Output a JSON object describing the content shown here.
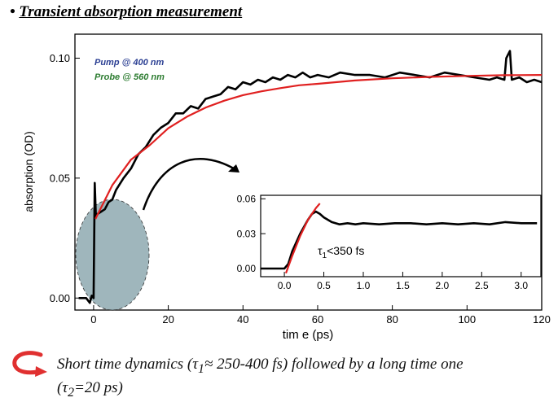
{
  "slide": {
    "bullet": "•",
    "title": "Transient absorption measurement"
  },
  "legend": {
    "pump": "Pump @ 400 nm",
    "probe": "Probe @ 560 nm",
    "pump_color": "#2b3f93",
    "probe_color": "#2e7d32"
  },
  "colors": {
    "data": "#000000",
    "fit": "#e02020",
    "ellipse": "#7f9ea6"
  },
  "caption": {
    "line1_a": "Short time dynamics (",
    "tau1_sym": "τ",
    "tau1_sub": "1",
    "line1_b": "≈ 250-400 fs) followed by a long time one",
    "line2_a": "(",
    "tau2_sym": "τ",
    "tau2_sub": "2",
    "line2_b": "=20 ps)"
  },
  "chart_data": [
    {
      "type": "line",
      "xlabel": "tim e (ps)",
      "ylabel": "absorption (OD)",
      "xlim": [
        -5,
        120
      ],
      "ylim": [
        -0.005,
        0.11
      ],
      "xticks": [
        0,
        20,
        40,
        60,
        80,
        100,
        120
      ],
      "yticks": [
        0.0,
        0.05,
        0.1
      ],
      "xtick_labels": [
        "0",
        "20",
        "40",
        "60",
        "80",
        "100",
        "120"
      ],
      "ytick_labels": [
        "0.00",
        "0.05",
        "0.10"
      ],
      "series": [
        {
          "role": "data",
          "x": [
            -4,
            -2,
            -1,
            -0.5,
            0,
            0.3,
            0.6,
            1,
            2,
            3,
            4,
            5,
            6,
            8,
            10,
            12,
            14,
            16,
            18,
            20,
            22,
            24,
            26,
            28,
            30,
            32,
            34,
            36,
            38,
            40,
            42,
            44,
            46,
            48,
            50,
            52,
            54,
            56,
            58,
            60,
            63,
            66,
            70,
            74,
            78,
            82,
            86,
            90,
            94,
            98,
            102,
            106,
            108,
            110,
            110.5,
            111.5,
            112,
            114,
            116,
            118,
            120
          ],
          "y": [
            0.0,
            0.0,
            -0.002,
            0.001,
            0.0,
            0.048,
            0.034,
            0.035,
            0.036,
            0.037,
            0.04,
            0.041,
            0.045,
            0.05,
            0.054,
            0.06,
            0.063,
            0.068,
            0.071,
            0.073,
            0.077,
            0.077,
            0.08,
            0.079,
            0.083,
            0.084,
            0.085,
            0.088,
            0.087,
            0.09,
            0.089,
            0.091,
            0.09,
            0.092,
            0.091,
            0.093,
            0.092,
            0.094,
            0.092,
            0.093,
            0.092,
            0.094,
            0.093,
            0.093,
            0.092,
            0.094,
            0.093,
            0.092,
            0.094,
            0.093,
            0.092,
            0.091,
            0.092,
            0.091,
            0.1,
            0.103,
            0.091,
            0.092,
            0.09,
            0.091,
            0.09
          ]
        },
        {
          "role": "fit",
          "model": "0.093*(1-0.65*exp(-t/20))",
          "x": [
            0.5,
            5,
            10,
            15,
            20,
            25,
            30,
            35,
            40,
            45,
            50,
            55,
            60,
            70,
            80,
            90,
            100,
            110,
            120
          ],
          "y": [
            0.033,
            0.047,
            0.0577,
            0.0637,
            0.0708,
            0.0756,
            0.0794,
            0.0823,
            0.0846,
            0.0862,
            0.0875,
            0.0887,
            0.0893,
            0.0907,
            0.0916,
            0.0922,
            0.0926,
            0.0929,
            0.093
          ]
        }
      ]
    },
    {
      "type": "line",
      "inset": true,
      "xlim": [
        -0.3,
        3.25
      ],
      "ylim": [
        -0.007,
        0.063
      ],
      "xticks": [
        0.0,
        0.5,
        1.0,
        1.5,
        2.0,
        2.5,
        3.0
      ],
      "yticks": [
        0.0,
        0.03,
        0.06
      ],
      "xtick_labels": [
        "0.0",
        "0.5",
        "1.0",
        "1.5",
        "2.0",
        "2.5",
        "3.0"
      ],
      "ytick_labels": [
        "0.00",
        "0.03",
        "0.06"
      ],
      "annotation": {
        "sym": "τ",
        "sub": "1",
        "rest": "<350 fs"
      },
      "series": [
        {
          "role": "data",
          "x": [
            -0.3,
            -0.1,
            0.0,
            0.05,
            0.1,
            0.2,
            0.3,
            0.35,
            0.4,
            0.45,
            0.5,
            0.6,
            0.7,
            0.8,
            0.9,
            1.0,
            1.2,
            1.4,
            1.6,
            1.8,
            2.0,
            2.2,
            2.4,
            2.6,
            2.8,
            3.0,
            3.2
          ],
          "y": [
            0.0,
            0.0,
            0.0,
            0.004,
            0.015,
            0.03,
            0.042,
            0.047,
            0.049,
            0.047,
            0.044,
            0.04,
            0.038,
            0.039,
            0.038,
            0.039,
            0.038,
            0.039,
            0.039,
            0.038,
            0.039,
            0.038,
            0.039,
            0.038,
            0.04,
            0.039,
            0.039
          ]
        },
        {
          "role": "fit",
          "x": [
            0.02,
            0.1,
            0.2,
            0.3,
            0.4,
            0.45
          ],
          "y": [
            -0.004,
            0.011,
            0.028,
            0.042,
            0.052,
            0.056
          ]
        }
      ]
    }
  ]
}
